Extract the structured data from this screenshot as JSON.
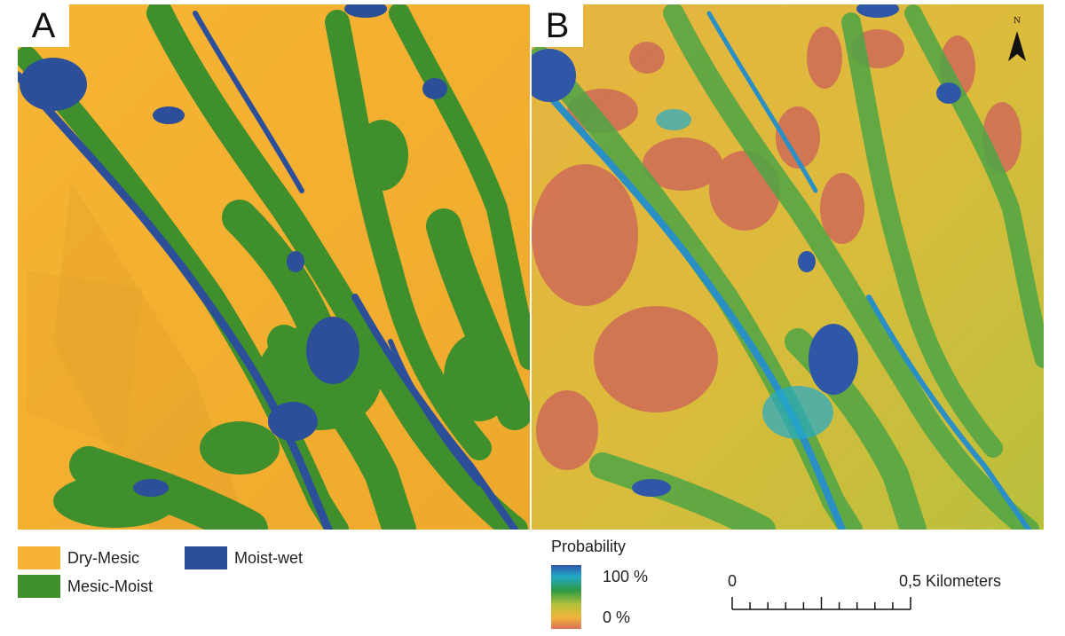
{
  "panels": {
    "a": {
      "letter": "A"
    },
    "b": {
      "letter": "B",
      "north_label": "N"
    }
  },
  "legend_a": {
    "items": [
      {
        "label": "Dry-Mesic",
        "color": "#f6b336"
      },
      {
        "label": "Mesic-Moist",
        "color": "#3f8f2c"
      },
      {
        "label": "Moist-wet",
        "color": "#2d4f9a"
      }
    ]
  },
  "legend_b": {
    "title": "Probability",
    "max_label": "100 %",
    "min_label": "0 %",
    "ramp_colors": [
      "#2f57a8",
      "#23a9c9",
      "#2f9a45",
      "#b3c23a",
      "#f0b43a",
      "#d9705a"
    ]
  },
  "scalebar": {
    "start_label": "0",
    "end_label": "0,5 Kilometers",
    "divisions": 10
  }
}
